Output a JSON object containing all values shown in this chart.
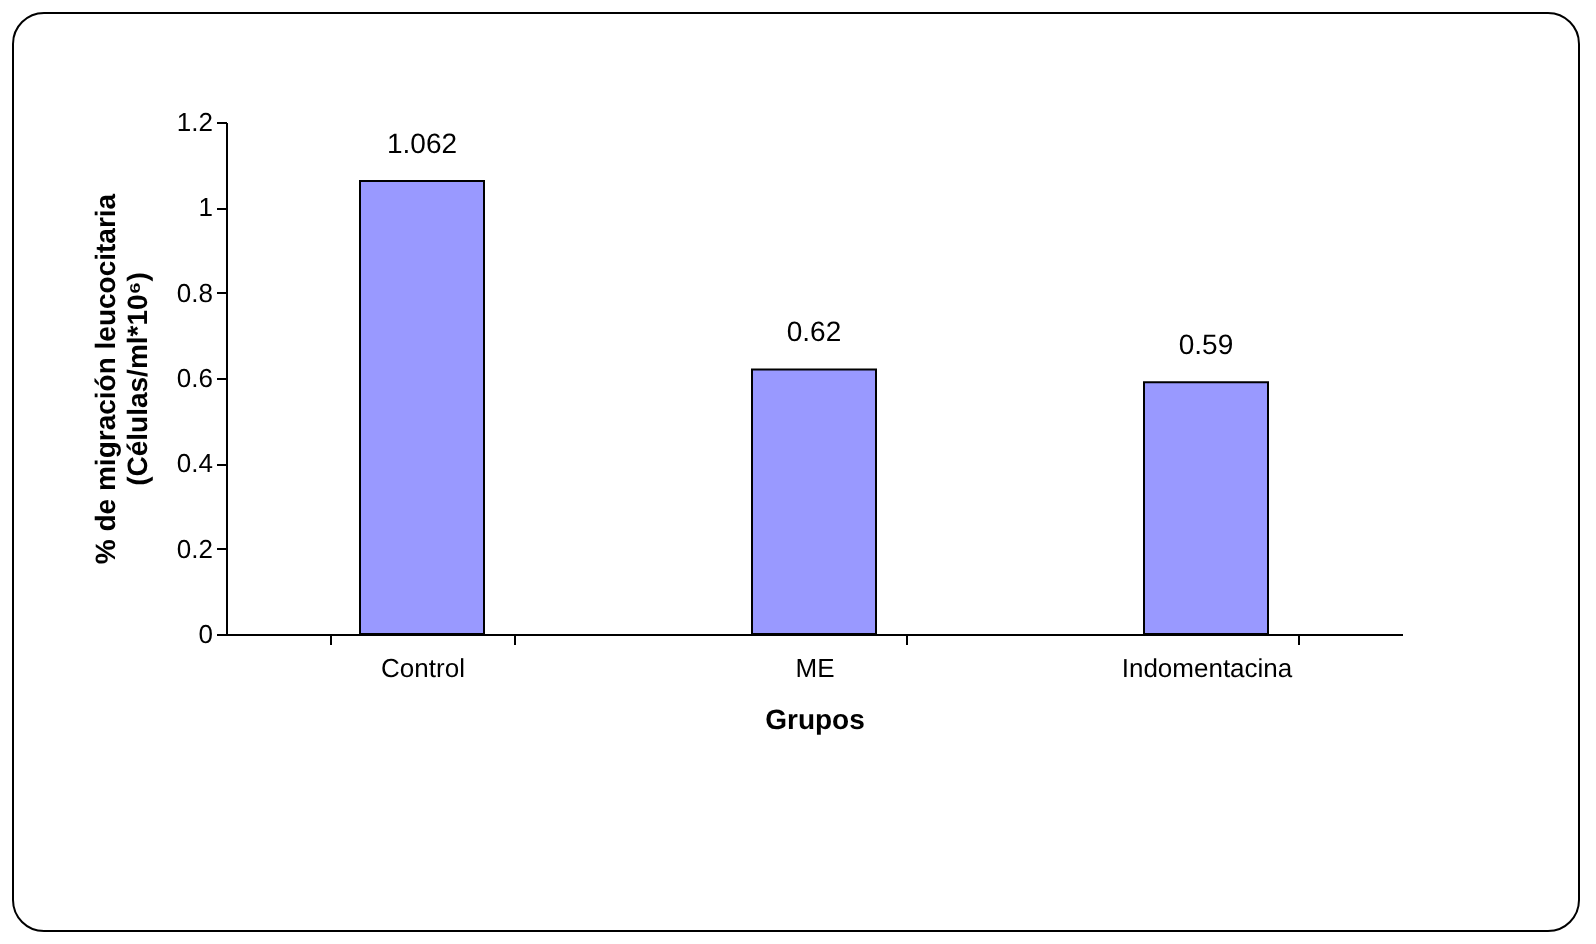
{
  "chart_data": {
    "type": "bar",
    "xlabel": "Grupos",
    "ylabel": "% de migración leucocitaria\n(Células/ml*10⁶)",
    "categories": [
      "Control",
      "ME",
      "Indomentacina"
    ],
    "values": [
      1.062,
      0.62,
      0.59
    ],
    "color": "#9999ff",
    "ylim": [
      0,
      1.2
    ],
    "yticks": [
      0,
      0.2,
      0.4,
      0.6,
      0.8,
      1,
      1.2
    ],
    "grid": false,
    "legend": false,
    "data_labels": true
  }
}
